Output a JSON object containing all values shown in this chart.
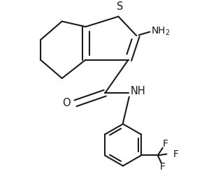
{
  "background_color": "#ffffff",
  "line_color": "#1a1a1a",
  "line_width": 1.5,
  "font_size": 9,
  "figsize": [
    3.12,
    2.62
  ],
  "dpi": 100,
  "xlim": [
    0,
    6.2
  ],
  "ylim": [
    -3.5,
    3.0
  ]
}
